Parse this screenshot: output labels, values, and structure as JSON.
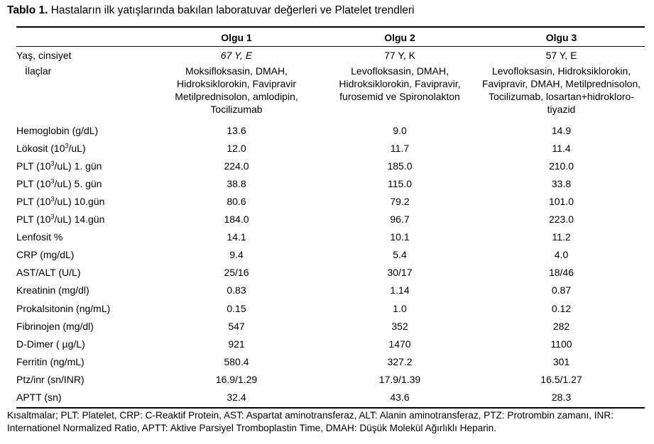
{
  "caption": {
    "prefix": "Tablo 1.",
    "text": " Hastaların ilk yatışlarında bakılan laboratuvar değerleri ve Platelet trendleri"
  },
  "headers": [
    "",
    "Olgu 1",
    "Olgu 2",
    "Olgu 3"
  ],
  "demo": {
    "label": "Yaş, cinsiyet",
    "values": [
      "67 Y, E",
      "77 Y, K",
      "57 Y, E"
    ]
  },
  "meds": {
    "label": "İlaçlar",
    "values": [
      "Moksifloksasin, DMAH, Hidroksiklorokin, Favipravir Metilprednisolon, amlodipin, Tocilizumab",
      "Levofloksasin, DMAH, Hidroksiklorokin, Favipravir, furosemid ve Spironolakton",
      "Levofloksasin, Hidroksiklorokin, Favipravir, DMAH, Metilprednisolon, Tocilizumab, losartan+hidrokloro-tiyazid"
    ]
  },
  "rows": [
    {
      "label": "Hemoglobin (g/dL)",
      "values": [
        "13.6",
        "9.0",
        "14.9"
      ]
    },
    {
      "label_pre": "Lökosit  (10",
      "label_sup": "3",
      "label_post": "/uL)",
      "values": [
        "12.0",
        "11.7",
        "11.4"
      ]
    },
    {
      "label_pre": "PLT  (10",
      "label_sup": "3",
      "label_post": "/uL)   1. gün",
      "values": [
        "224.0",
        "185.0",
        "210.0"
      ]
    },
    {
      "label_pre": "PLT  (10",
      "label_sup": "3",
      "label_post": "/uL)   5. gün",
      "values": [
        "38.8",
        "115.0",
        "33.8"
      ]
    },
    {
      "label_pre": "PLT   (10",
      "label_sup": "3",
      "label_post": "/uL)   10.gün",
      "values": [
        "80.6",
        "79.2",
        "101.0"
      ]
    },
    {
      "label_pre": "PLT  (10",
      "label_sup": "3",
      "label_post": "/uL)   14.gün",
      "values": [
        "184.0",
        "96.7",
        "223.0"
      ]
    },
    {
      "label": "Lenfosit %",
      "values": [
        "14.1",
        "10.1",
        "11.2"
      ]
    },
    {
      "label": "CRP  (mg/dL)",
      "values": [
        "9.4",
        "5.4",
        "4.0"
      ]
    },
    {
      "label": "AST/ALT (U/L)",
      "values": [
        "25/16",
        "30/17",
        "18/46"
      ]
    },
    {
      "label": "Kreatinin (mg/dl)",
      "values": [
        "0.83",
        "1.14",
        "0.87"
      ]
    },
    {
      "label": "Prokalsitonin (ng/mL)",
      "values": [
        "0.15",
        "1.0",
        "0.12"
      ]
    },
    {
      "label": "Fibrinojen  (mg/dl)",
      "values": [
        "547",
        "352",
        "282"
      ]
    },
    {
      "label": "D-Dimer ( µg/L)",
      "values": [
        "921",
        "1470",
        "1100"
      ]
    },
    {
      "label": "Ferritin  (ng/mL)",
      "values": [
        "580.4",
        "327.2",
        "301"
      ]
    },
    {
      "label": "Ptz/inr  (sn/INR)",
      "values": [
        "16.9/1.29",
        "17.9/1.39",
        "16.5/1.27"
      ]
    },
    {
      "label": "APTT (sn)",
      "values": [
        "32.4",
        "43.6",
        "28.3"
      ]
    }
  ],
  "footer": "Kısaltmalar; PLT: Platelet, CRP: C-Reaktif Protein, AST: Aspartat aminotransferaz, ALT: Alanin aminotransferaz, PTZ: Protrombin zamanı, INR: Internationel Normalized Ratio, APTT: Aktive Parsiyel Tromboplastin Time, DMAH: Düşük Molekül Ağırlıklı Heparin."
}
